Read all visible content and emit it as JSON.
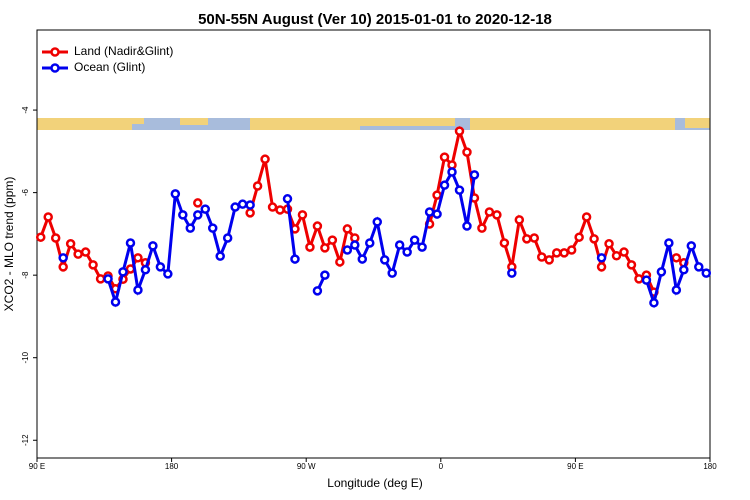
{
  "chart_data": {
    "type": "line",
    "title": "50N-55N August (Ver 10)   2015-01-01 to 2020-12-18",
    "x_label": "Longitude (deg E)",
    "y_label": "XCO2 - MLO trend (ppm)",
    "x": [
      92.5,
      97.5,
      102.5,
      107.5,
      112.5,
      117.5,
      122.5,
      127.5,
      132.5,
      137.5,
      142.5,
      147.5,
      152.5,
      157.5,
      162.5,
      167.5,
      172.5,
      177.5,
      182.5,
      187.5,
      192.5,
      197.5,
      202.5,
      207.5,
      212.5,
      217.5,
      222.5,
      227.5,
      232.5,
      237.5,
      242.5,
      247.5,
      252.5,
      257.5,
      262.5,
      267.5,
      272.5,
      277.5,
      282.5,
      287.5,
      292.5,
      297.5,
      302.5,
      307.5,
      312.5,
      317.5,
      322.5,
      327.5,
      332.5,
      337.5,
      342.5,
      347.5,
      352.5,
      357.5,
      362.5,
      367.5,
      372.5,
      377.5,
      382.5,
      387.5,
      392.5,
      397.5,
      402.5,
      407.5,
      412.5,
      417.5,
      422.5,
      427.5,
      432.5,
      437.5,
      442.5,
      447.5,
      452.5,
      457.5,
      462.5,
      467.5,
      472.5,
      477.5,
      482.5,
      487.5,
      492.5,
      497.5,
      502.5,
      507.5,
      512.5,
      517.5,
      522.5,
      527.5,
      532.5,
      537.5
    ],
    "series": [
      {
        "name": "Land (Nadir&Glint)",
        "color": "#ee0000",
        "values": [
          -7.08,
          -6.59,
          -7.1,
          -7.8,
          -7.24,
          -7.49,
          -7.44,
          -7.75,
          -8.09,
          -8.02,
          -8.33,
          -8.1,
          -7.85,
          -7.58,
          -7.7,
          null,
          null,
          null,
          null,
          null,
          null,
          -6.25,
          null,
          null,
          null,
          null,
          null,
          null,
          -6.49,
          -5.84,
          -5.19,
          -6.35,
          -6.42,
          -6.4,
          -6.88,
          -6.54,
          -7.32,
          -6.81,
          -7.34,
          -7.15,
          -7.68,
          -6.88,
          -7.1,
          null,
          null,
          null,
          null,
          null,
          null,
          null,
          null,
          null,
          -6.76,
          -6.06,
          -5.14,
          -5.33,
          -4.51,
          -5.02,
          -6.13,
          -6.86,
          -6.47,
          -6.54,
          -7.22,
          -7.8,
          -6.66,
          -7.12,
          -7.1,
          -7.56,
          -7.63,
          -7.46,
          -7.46,
          -7.39,
          -7.08,
          -6.59,
          -7.12,
          -7.8,
          -7.24,
          -7.53,
          -7.44,
          -7.75,
          -8.09,
          -8.0,
          -8.41,
          null,
          null,
          -7.58,
          -7.7,
          null,
          null,
          null
        ]
      },
      {
        "name": "Ocean (Glint)",
        "color": "#0000ee",
        "values": [
          null,
          null,
          null,
          -7.58,
          null,
          null,
          null,
          null,
          null,
          -8.09,
          -8.65,
          -7.92,
          -7.22,
          -8.36,
          -7.87,
          -7.29,
          -7.8,
          -7.97,
          -6.03,
          -6.54,
          -6.86,
          -6.54,
          -6.4,
          -6.86,
          -7.54,
          -7.1,
          -6.35,
          -6.28,
          -6.3,
          null,
          null,
          null,
          null,
          -6.15,
          -7.61,
          null,
          null,
          -8.38,
          -8.0,
          null,
          null,
          -7.39,
          -7.27,
          -7.61,
          -7.22,
          -6.71,
          -7.63,
          -7.95,
          -7.27,
          -7.44,
          -7.15,
          -7.32,
          -6.47,
          -6.52,
          -5.82,
          -5.5,
          -5.94,
          -6.81,
          -5.57,
          null,
          null,
          null,
          null,
          -7.95,
          null,
          null,
          null,
          null,
          null,
          null,
          null,
          null,
          null,
          null,
          null,
          -7.58,
          null,
          null,
          null,
          null,
          null,
          -8.12,
          -8.67,
          -7.92,
          -7.22,
          -8.36,
          -7.87,
          -7.29,
          -7.8,
          -7.95
        ]
      }
    ],
    "xlim": [
      90,
      540
    ],
    "xticks": [
      {
        "value": 90,
        "label": "90 E"
      },
      {
        "value": 180,
        "label": "180"
      },
      {
        "value": 270,
        "label": "90 W"
      },
      {
        "value": 360,
        "label": "0"
      },
      {
        "value": 450,
        "label": "90 E"
      },
      {
        "value": 540,
        "label": "180"
      }
    ],
    "ylim": [
      -12.43,
      -2.06
    ],
    "yticks": [
      -12,
      -10,
      -8,
      -6,
      -4
    ],
    "legend": "top-left"
  }
}
